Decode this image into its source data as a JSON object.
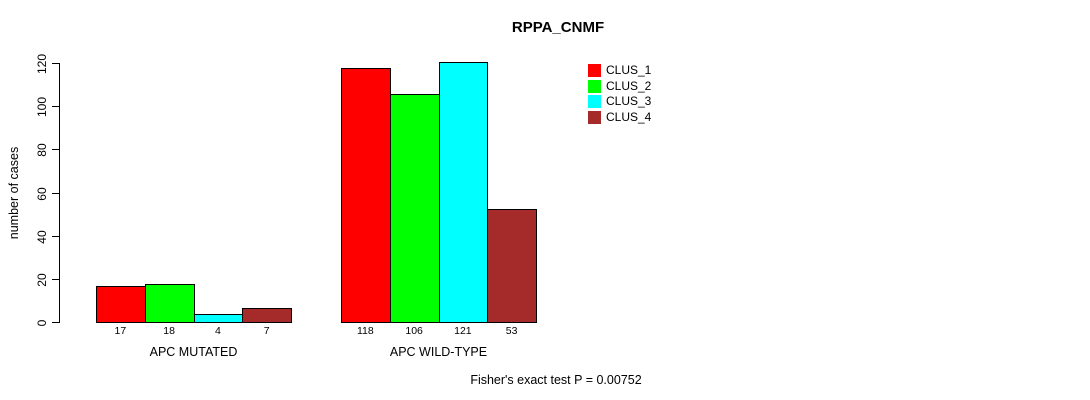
{
  "chart_data": {
    "type": "bar",
    "title": "RPPA_CNMF",
    "ylabel": "number of cases",
    "xlabel": "",
    "categories": [
      "APC MUTATED",
      "APC WILD-TYPE"
    ],
    "series": [
      {
        "name": "CLUS_1",
        "color": "#FF0000",
        "values": [
          17,
          118
        ]
      },
      {
        "name": "CLUS_2",
        "color": "#00FF00",
        "values": [
          18,
          106
        ]
      },
      {
        "name": "CLUS_3",
        "color": "#00FFFF",
        "values": [
          4,
          121
        ]
      },
      {
        "name": "CLUS_4",
        "color": "#A52A2A",
        "values": [
          7,
          53
        ]
      }
    ],
    "bar_value_labels": [
      [
        "17",
        "18",
        "4",
        "7"
      ],
      [
        "118",
        "106",
        "121",
        "53"
      ]
    ],
    "ylim": [
      0,
      120
    ],
    "yticks": [
      0,
      20,
      40,
      60,
      80,
      100,
      120
    ],
    "grid": false,
    "legend_position": "top-right",
    "annotation": "Fisher's exact test P = 0.00752",
    "bar_border_color": "#000000",
    "background_color": "#FFFFFF"
  }
}
